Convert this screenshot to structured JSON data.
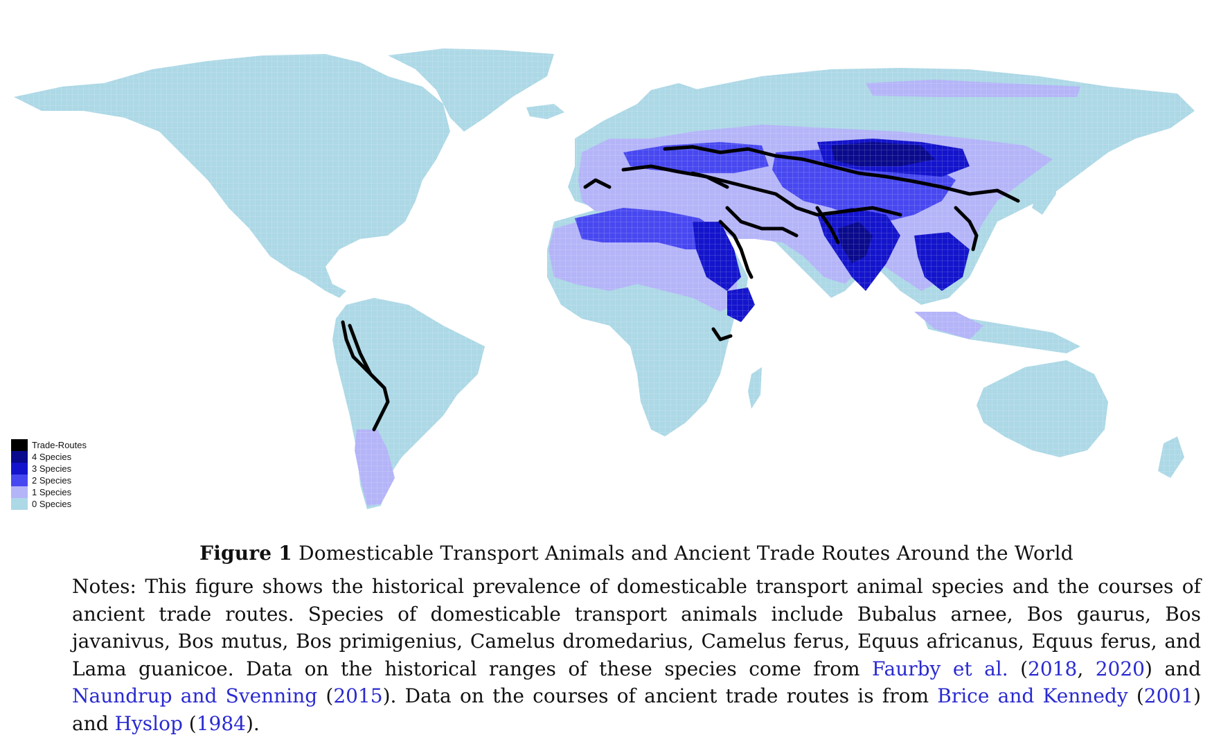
{
  "map": {
    "colors": {
      "ocean": "#ffffff",
      "trade_routes": "#000000",
      "species_4": "#0a0a8c",
      "species_3": "#1414cc",
      "species_2": "#4848f0",
      "species_1": "#b4b4f8",
      "species_0": "#add8e6"
    }
  },
  "legend": {
    "items": [
      {
        "label": "Trade-Routes",
        "color": "#000000"
      },
      {
        "label": "4 Species",
        "color": "#0a0a8c"
      },
      {
        "label": "3 Species",
        "color": "#1414cc"
      },
      {
        "label": "2 Species",
        "color": "#4848f0"
      },
      {
        "label": "1 Species",
        "color": "#b4b4f8"
      },
      {
        "label": "0 Species",
        "color": "#add8e6"
      }
    ]
  },
  "caption": {
    "figure_label": "Figure 1",
    "figure_title": "Domesticable Transport Animals and Ancient Trade Routes Around the World",
    "notes": {
      "t1": "Notes: This figure shows the historical prevalence of domesticable transport animal species and the courses of ancient trade routes. Species of domesticable transport animals include Bubalus arnee, Bos gaurus, Bos javanivus, Bos mutus, Bos primigenius, Camelus dromedarius, Camelus ferus, Equus africanus, Equus ferus, and Lama guanicoe. Data on the historical ranges of these species come from ",
      "r1": "Faurby et al.",
      "t2": " (",
      "r2": "2018",
      "t3": ", ",
      "r3": "2020",
      "t4": ") and ",
      "r4": "Naundrup and Svenning",
      "t5": " (",
      "r5": "2015",
      "t6": "). Data on the courses of ancient trade routes is from ",
      "r6": "Brice and Kennedy",
      "t7": " (",
      "r7": "2001",
      "t8": ") and ",
      "r8": "Hyslop",
      "t9": " (",
      "r9": "1984",
      "t10": ")."
    }
  }
}
